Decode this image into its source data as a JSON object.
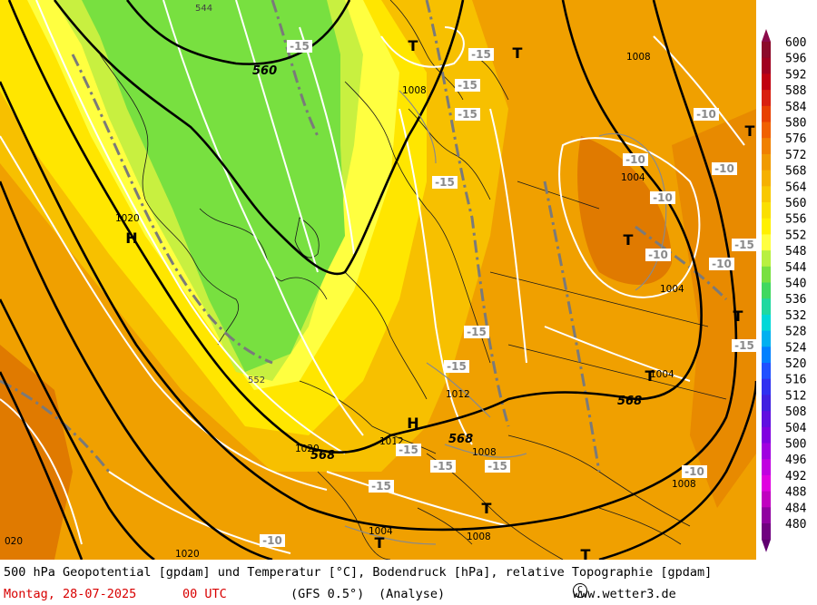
{
  "map": {
    "pressure_systems": [
      {
        "type": "H",
        "label": "H"
      },
      {
        "type": "H",
        "label": "H"
      },
      {
        "type": "T",
        "label": "T"
      },
      {
        "type": "T",
        "label": "T"
      },
      {
        "type": "T",
        "label": "T"
      },
      {
        "type": "T",
        "label": "T"
      },
      {
        "type": "T",
        "label": "T"
      },
      {
        "type": "T",
        "label": "T"
      },
      {
        "type": "T",
        "label": "T"
      },
      {
        "type": "T",
        "label": "T"
      },
      {
        "type": "T",
        "label": "T"
      }
    ],
    "geopotential_labels": [
      "560",
      "568",
      "568",
      "568",
      "552",
      "544"
    ],
    "pressure_labels": [
      "1008",
      "1008",
      "1004",
      "1004",
      "1004",
      "1012",
      "1012",
      "1008",
      "1008",
      "1004",
      "1008",
      "1020",
      "1020",
      "020",
      "1020"
    ],
    "temperature_labels": [
      "-15",
      "-15",
      "-15",
      "-15",
      "-15",
      "-15",
      "-15",
      "-15",
      "-15",
      "-10",
      "-10",
      "-10",
      "-10",
      "-10",
      "-10",
      "-10",
      "-15",
      "-15",
      "-15",
      "-10",
      "-15"
    ],
    "colors": {
      "dark_orange": "#e07a00",
      "orange": "#f0a000",
      "light_orange": "#f7c000",
      "yellow": "#ffe600",
      "light_yellow": "#ffff40",
      "yellow_green": "#c8f040",
      "green": "#78e040"
    }
  },
  "scale": {
    "values": [
      "600",
      "596",
      "592",
      "588",
      "584",
      "580",
      "576",
      "572",
      "568",
      "564",
      "560",
      "556",
      "552",
      "548",
      "544",
      "540",
      "536",
      "532",
      "528",
      "524",
      "520",
      "516",
      "512",
      "508",
      "504",
      "500",
      "496",
      "492",
      "488",
      "484",
      "480"
    ],
    "colors": [
      "#8b0a2a",
      "#a00020",
      "#c00010",
      "#d82010",
      "#e84000",
      "#f06000",
      "#f08000",
      "#f09a00",
      "#f5b000",
      "#f8c800",
      "#fadf00",
      "#fff000",
      "#ffff40",
      "#b8f040",
      "#78e040",
      "#40d860",
      "#20d8a0",
      "#00d8d8",
      "#00b0f0",
      "#0080ff",
      "#2050ff",
      "#3030f0",
      "#4020e0",
      "#6010e0",
      "#8000e0",
      "#a000e0",
      "#c000e0",
      "#e000e0",
      "#c000c0",
      "#9000a0",
      "#700080"
    ]
  },
  "footer": {
    "line1": "500 hPa Geopotential [gpdam] und Temperatur [°C], Bodendruck [hPa], relative Topographie [gpdam]",
    "date": "Montag, 28-07-2025",
    "time": "00 UTC",
    "model": "(GFS 0.5°)",
    "analysis": "(Analyse)",
    "copyright_symbol": "C",
    "site": "www.wetter3.de"
  }
}
